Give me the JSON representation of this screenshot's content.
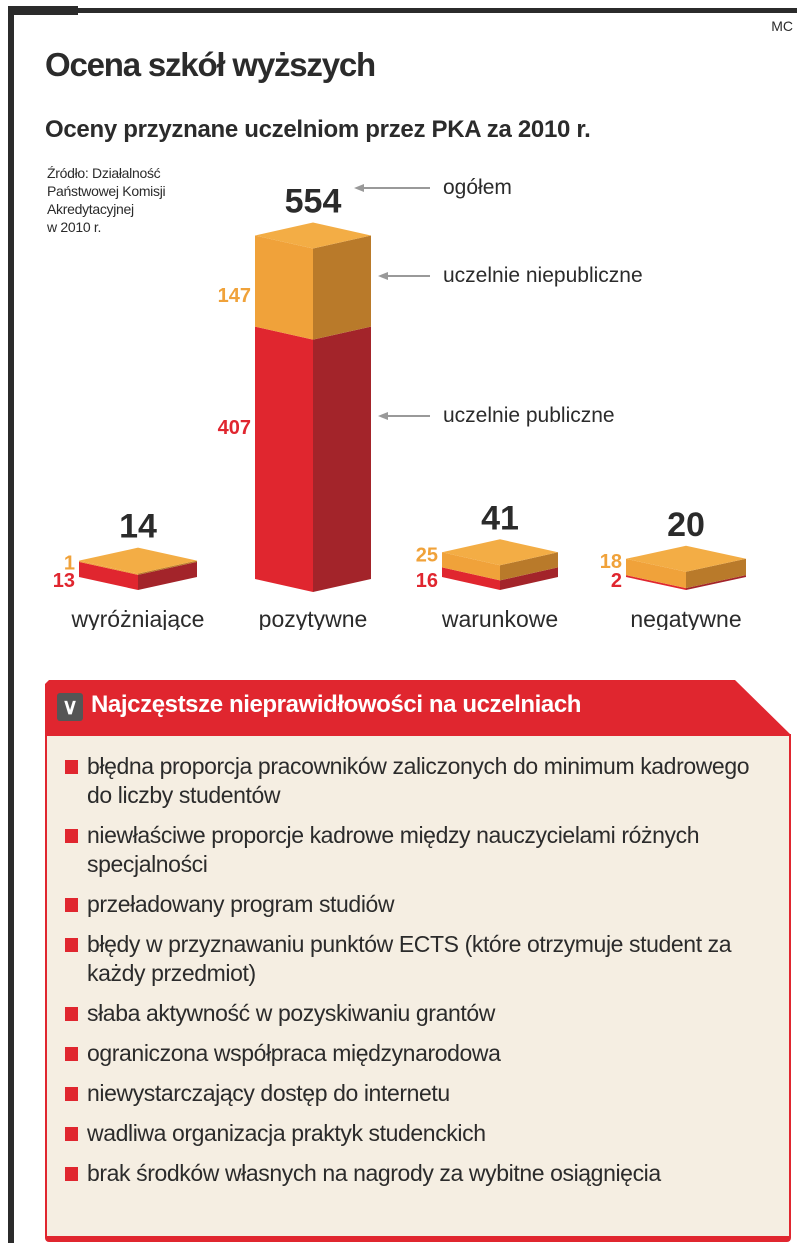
{
  "credit": "MC",
  "title": "Ocena szkół wyższych",
  "subtitle": "Oceny przyznane uczelniom przez PKA za 2010 r.",
  "source": "Źródło: Działalność\nPaństwowej Komisji\nAkredytacyjnej\nw 2010 r.",
  "colors": {
    "public": "#e0262f",
    "public_dark": "#a3242a",
    "nonpublic": "#f0a23a",
    "nonpublic_dark": "#b97a2a",
    "text": "#2b2b2b"
  },
  "chart_data": {
    "type": "bar",
    "stacked": true,
    "categories": [
      "wyróżniające",
      "pozytywne",
      "warunkowe",
      "negatywne"
    ],
    "series": [
      {
        "name": "uczelnie publiczne",
        "values": [
          13,
          407,
          16,
          2
        ]
      },
      {
        "name": "uczelnie niepubliczne",
        "values": [
          1,
          147,
          25,
          18
        ]
      }
    ],
    "totals": [
      14,
      554,
      41,
      20
    ],
    "annotations": {
      "total": "ogółem",
      "nonpublic": "uczelnie niepubliczne",
      "public": "uczelnie publiczne"
    }
  },
  "issues": {
    "icon": "chevron-down-icon",
    "title": "Najczęstsze nieprawidłowości na uczelniach",
    "items": [
      "błędna proporcja pracowników zaliczonych do minimum kadrowego do liczby studentów",
      "niewłaściwe proporcje kadrowe między nauczycielami różnych specjalności",
      "przeładowany program studiów",
      "błędy w przyznawaniu punktów ECTS (które otrzymuje student za każdy przedmiot)",
      "słaba aktywność w pozyskiwaniu grantów",
      "ograniczona współpraca międzynarodowa",
      "niewystarczający dostęp do internetu",
      "wadliwa organizacja praktyk studenckich",
      "brak środków własnych na nagrody za wybitne osiągnięcia"
    ]
  }
}
